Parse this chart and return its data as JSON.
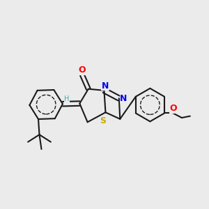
{
  "background_color": "#ebebeb",
  "bond_color": "#1a1a1a",
  "atom_colors": {
    "O": "#ff0000",
    "N": "#0000ee",
    "S": "#ccaa00",
    "H": "#44aaaa",
    "C": "#1a1a1a"
  },
  "figsize": [
    3.0,
    3.0
  ],
  "dpi": 100
}
